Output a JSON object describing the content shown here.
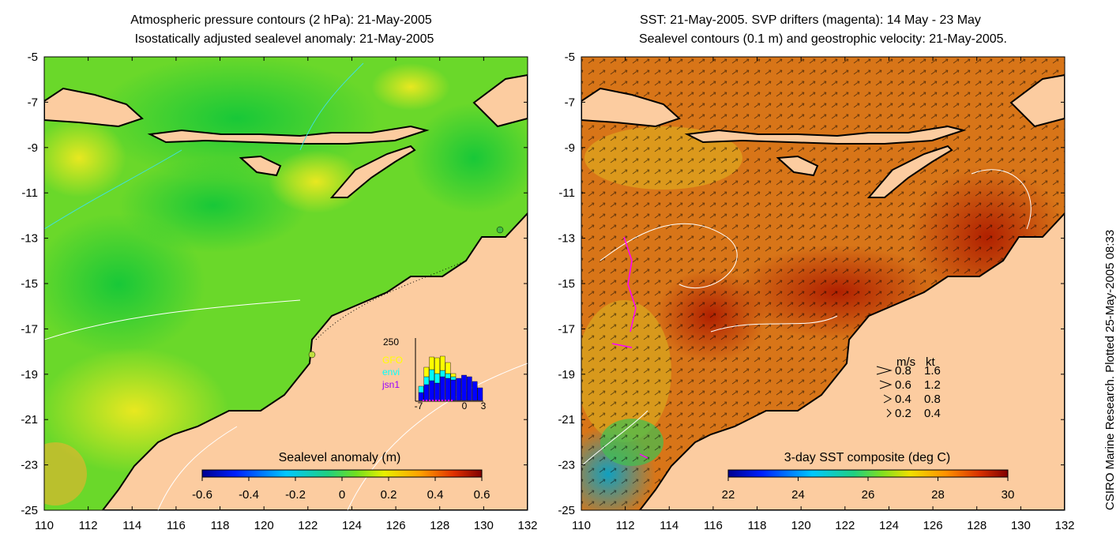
{
  "left_panel": {
    "title_line1": "Atmospheric pressure contours (2 hPa): 21-May-2005",
    "title_line2": "Isostatically adjusted sealevel anomaly: 21-May-2005",
    "colorbar": {
      "title": "Sealevel anomaly (m)",
      "ticks": [
        "-0.6",
        "-0.4",
        "-0.2",
        "0",
        "0.2",
        "0.4",
        "0.6"
      ]
    },
    "inset": {
      "ymax_label": "250",
      "legend": [
        {
          "label": "GFO",
          "color": "#ffff00"
        },
        {
          "label": "envi",
          "color": "#00ffff"
        },
        {
          "label": "jsn1",
          "color": "#9900ff"
        }
      ],
      "x_ticks": [
        "-7",
        "0",
        "3"
      ]
    }
  },
  "right_panel": {
    "title_line1": "SST: 21-May-2005. SVP drifters (magenta): 14 May - 23 May",
    "title_line2": "Sealevel contours (0.1 m) and geostrophic velocity: 21-May-2005.",
    "colorbar": {
      "title": "3-day SST composite (deg C)",
      "ticks": [
        "22",
        "24",
        "26",
        "28",
        "30"
      ]
    },
    "velocity_key": {
      "header_ms": "m/s",
      "header_kt": "kt",
      "rows": [
        {
          "ms": "0.8",
          "kt": "1.6"
        },
        {
          "ms": "0.6",
          "kt": "1.2"
        },
        {
          "ms": "0.4",
          "kt": "0.8"
        },
        {
          "ms": "0.2",
          "kt": "0.4"
        }
      ]
    }
  },
  "axes": {
    "y_ticks": [
      "-5",
      "-7",
      "-9",
      "-11",
      "-13",
      "-15",
      "-17",
      "-19",
      "-21",
      "-23",
      "-25"
    ],
    "x_ticks": [
      "110",
      "112",
      "114",
      "116",
      "118",
      "120",
      "122",
      "124",
      "126",
      "128",
      "130",
      "132"
    ]
  },
  "credit": "CSIRO Marine Research. Plotted 25-May-2005 08:33",
  "colors": {
    "land": "#fccca0",
    "sla_field": "#5fdc1e",
    "sst_field": "#d96a12",
    "coast": "#000000",
    "magenta": "#ff00ff"
  }
}
